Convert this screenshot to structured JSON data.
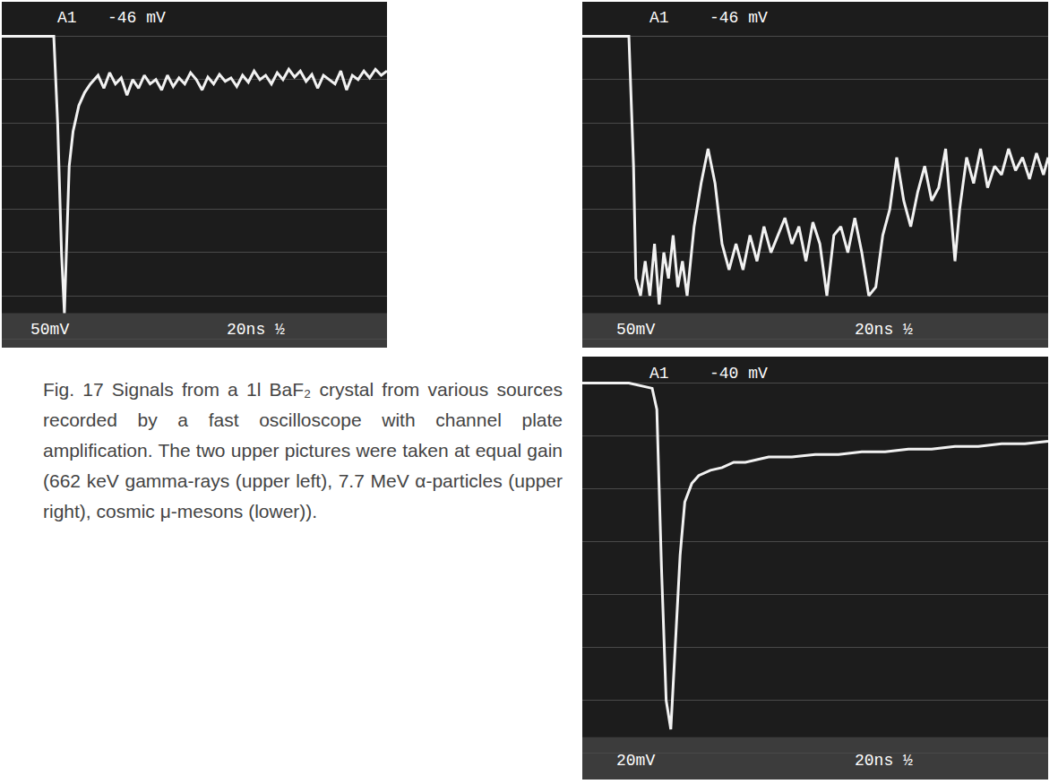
{
  "chart_data": [
    {
      "type": "line",
      "color": "#f2f2f2",
      "grid": "y",
      "tick_labels": false,
      "annotations": [
        "A1",
        "-46 mV",
        "50mV",
        "20ns ½"
      ],
      "xlim": [
        0,
        200
      ],
      "ylim": [
        -360,
        40
      ],
      "yticks": [
        -350,
        -300,
        -250,
        -200,
        -150,
        -100,
        -50,
        0
      ],
      "x": [
        0,
        20,
        27,
        29,
        31,
        32.5,
        33.5,
        35,
        37,
        40,
        43,
        46,
        50,
        53,
        56,
        59,
        62,
        65,
        68,
        71,
        74,
        77,
        80,
        83,
        86,
        89,
        92,
        95,
        98,
        101,
        104,
        107,
        110,
        113,
        116,
        119,
        122,
        125,
        128,
        131,
        134,
        137,
        140,
        143,
        146,
        149,
        152,
        155,
        158,
        161,
        164,
        167,
        170,
        173,
        176,
        179,
        182,
        185,
        188,
        191,
        194,
        197,
        200
      ],
      "values": [
        0,
        0,
        0,
        -100,
        -250,
        -320,
        -250,
        -150,
        -110,
        -80,
        -65,
        -55,
        -45,
        -60,
        -42,
        -55,
        -48,
        -68,
        -50,
        -60,
        -45,
        -55,
        -50,
        -62,
        -45,
        -58,
        -48,
        -55,
        -42,
        -50,
        -62,
        -47,
        -55,
        -44,
        -52,
        -48,
        -58,
        -45,
        -53,
        -40,
        -50,
        -45,
        -55,
        -42,
        -50,
        -38,
        -47,
        -40,
        -52,
        -44,
        -60,
        -45,
        -50,
        -55,
        -40,
        -62,
        -45,
        -50,
        -40,
        -48,
        -38,
        -45,
        -40
      ]
    },
    {
      "type": "line",
      "color": "#f2f2f2",
      "grid": "y",
      "tick_labels": false,
      "annotations": [
        "A1",
        "-46 mV",
        "50mV",
        "20ns ½"
      ],
      "xlim": [
        0,
        200
      ],
      "ylim": [
        -360,
        40
      ],
      "yticks": [
        -350,
        -300,
        -250,
        -200,
        -150,
        -100,
        -50,
        0
      ],
      "x": [
        0,
        20,
        22,
        23,
        25,
        27,
        29,
        31,
        33,
        35,
        37,
        39,
        41,
        43,
        45,
        48,
        51,
        54,
        57,
        60,
        63,
        66,
        69,
        72,
        75,
        78,
        81,
        84,
        87,
        90,
        93,
        96,
        99,
        102,
        105,
        108,
        111,
        114,
        117,
        120,
        123,
        126,
        129,
        132,
        135,
        138,
        141,
        144,
        147,
        150,
        153,
        156,
        159,
        160,
        162,
        165,
        168,
        171,
        174,
        177,
        180,
        183,
        186,
        189,
        192,
        195,
        198,
        200
      ],
      "values": [
        0,
        0,
        -150,
        -280,
        -300,
        -260,
        -300,
        -240,
        -310,
        -250,
        -280,
        -230,
        -290,
        -260,
        -300,
        -220,
        -170,
        -130,
        -170,
        -240,
        -270,
        -240,
        -270,
        -230,
        -260,
        -220,
        -250,
        -230,
        -210,
        -240,
        -220,
        -260,
        -215,
        -240,
        -300,
        -230,
        -220,
        -250,
        -210,
        -250,
        -300,
        -290,
        -230,
        -200,
        -140,
        -190,
        -220,
        -180,
        -150,
        -190,
        -175,
        -130,
        -230,
        -260,
        -200,
        -140,
        -170,
        -130,
        -175,
        -150,
        -160,
        -130,
        -155,
        -140,
        -165,
        -135,
        -160,
        -140
      ]
    },
    {
      "type": "line",
      "color": "#f2f2f2",
      "grid": "y",
      "tick_labels": false,
      "annotations": [
        "A1",
        "-40 mV",
        "20mV",
        "20ns ½"
      ],
      "xlim": [
        0,
        200
      ],
      "ylim": [
        -150,
        10
      ],
      "yticks": [
        -140,
        -120,
        -100,
        -80,
        -60,
        -40,
        -20,
        0
      ],
      "x": [
        0,
        20,
        30,
        32,
        34,
        36,
        38,
        40,
        42,
        44,
        47,
        50,
        55,
        60,
        65,
        70,
        75,
        80,
        90,
        100,
        110,
        120,
        130,
        140,
        150,
        160,
        170,
        180,
        190,
        200
      ],
      "values": [
        0,
        0,
        -2,
        -10,
        -70,
        -120,
        -131,
        -100,
        -65,
        -45,
        -38,
        -35,
        -33,
        -32,
        -30,
        -30,
        -29,
        -28,
        -28,
        -27,
        -27,
        -26,
        -26,
        -25,
        -25,
        -24,
        -24,
        -23,
        -23,
        -22
      ]
    }
  ],
  "caption": "Fig. 17 Signals from a 1l BaF₂ crystal from various sources recorded by a fast oscilloscope with channel plate amplification. The two upper pictures were taken at equal gain (662 keV gamma-rays (upper left), 7.7 MeV α-particles (upper right), cosmic μ-mesons (lower))."
}
